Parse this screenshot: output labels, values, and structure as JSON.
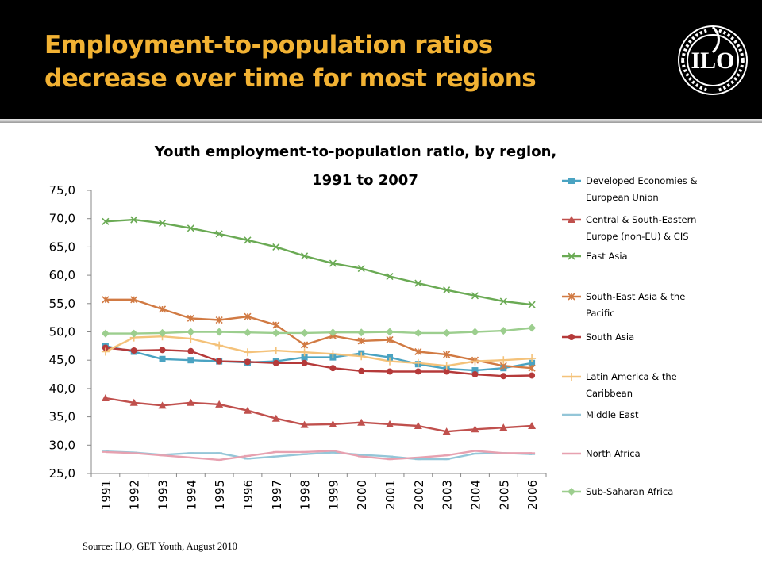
{
  "slide": {
    "title_line1": "Employment-to-population ratios",
    "title_line2": "decrease over time for most regions",
    "source": "Source: ILO, GET Youth, August 2010"
  },
  "logo": {
    "text": "ILO",
    "color": "#ffffff"
  },
  "colors": {
    "header_bg": "#000000",
    "title_text": "#f2b233"
  },
  "chart_data": {
    "type": "line",
    "title": "Youth employment-to-population ratio, by region, 1991 to 2007",
    "title_line1": "Youth employment-to-population ratio, by region,",
    "title_line2": "1991 to 2007",
    "x": [
      "1991",
      "1992",
      "1993",
      "1994",
      "1995",
      "1996",
      "1997",
      "1998",
      "1999",
      "2000",
      "2001",
      "2002",
      "2003",
      "2004",
      "2005",
      "2006"
    ],
    "ylim": [
      25,
      75
    ],
    "yticks": [
      "25,0",
      "30,0",
      "35,0",
      "40,0",
      "45,0",
      "50,0",
      "55,0",
      "60,0",
      "65,0",
      "70,0",
      "75,0"
    ],
    "grid": false,
    "legend_position": "right",
    "series": [
      {
        "name_lines": [
          "Developed Economies &",
          "European Union"
        ],
        "color": "#4aa3c2",
        "marker": "square",
        "values": [
          47.5,
          46.5,
          45.2,
          45.0,
          44.8,
          44.6,
          44.8,
          45.5,
          45.5,
          46.2,
          45.5,
          44.3,
          43.5,
          43.2,
          43.6,
          44.5
        ]
      },
      {
        "name_lines": [
          "Central & South-Eastern",
          "Europe (non-EU) & CIS"
        ],
        "color": "#c0504d",
        "marker": "triangle",
        "values": [
          38.3,
          37.5,
          37.0,
          37.5,
          37.2,
          36.1,
          34.7,
          33.6,
          33.7,
          34.0,
          33.7,
          33.4,
          32.4,
          32.8,
          33.1,
          33.4
        ]
      },
      {
        "name_lines": [
          "East Asia"
        ],
        "color": "#6aaa54",
        "marker": "x",
        "values": [
          69.5,
          69.8,
          69.2,
          68.3,
          67.3,
          66.2,
          65.0,
          63.4,
          62.1,
          61.2,
          59.8,
          58.6,
          57.4,
          56.4,
          55.4,
          54.8
        ]
      },
      {
        "name_lines": [
          "South-East Asia & the",
          "Pacific"
        ],
        "color": "#d17a43",
        "marker": "star",
        "values": [
          55.7,
          55.7,
          54.0,
          52.4,
          52.1,
          52.7,
          51.2,
          47.7,
          49.3,
          48.4,
          48.6,
          46.5,
          46.0,
          45.0,
          44.0,
          43.6
        ]
      },
      {
        "name_lines": [
          "South Asia"
        ],
        "color": "#b53a3a",
        "marker": "circle",
        "values": [
          47.2,
          46.7,
          46.8,
          46.6,
          44.8,
          44.7,
          44.5,
          44.5,
          43.6,
          43.1,
          43.0,
          43.0,
          43.0,
          42.5,
          42.2,
          42.3
        ]
      },
      {
        "name_lines": [
          "Latin America & the",
          "Caribbean"
        ],
        "color": "#f4c27a",
        "marker": "plus",
        "values": [
          46.5,
          49.0,
          49.2,
          48.8,
          47.6,
          46.4,
          46.7,
          46.4,
          46.1,
          45.7,
          44.8,
          44.5,
          44.0,
          44.8,
          45.0,
          45.3
        ]
      },
      {
        "name_lines": [
          "Middle East"
        ],
        "color": "#94c6d8",
        "marker": "dash",
        "values": [
          28.9,
          28.7,
          28.3,
          28.6,
          28.6,
          27.6,
          28.0,
          28.4,
          28.7,
          28.3,
          28.0,
          27.5,
          27.5,
          28.5,
          28.6,
          28.4
        ]
      },
      {
        "name_lines": [
          "North Africa"
        ],
        "color": "#e7a1b0",
        "marker": "dash",
        "values": [
          28.8,
          28.6,
          28.2,
          27.8,
          27.4,
          28.1,
          28.8,
          28.8,
          29.0,
          28.0,
          27.5,
          27.8,
          28.2,
          29.0,
          28.6,
          28.6
        ]
      },
      {
        "name_lines": [
          "Sub-Saharan Africa"
        ],
        "color": "#9cce8e",
        "marker": "diamond",
        "values": [
          49.7,
          49.7,
          49.8,
          50.0,
          50.0,
          49.9,
          49.8,
          49.8,
          49.9,
          49.9,
          50.0,
          49.8,
          49.8,
          50.0,
          50.2,
          50.7
        ]
      }
    ]
  }
}
